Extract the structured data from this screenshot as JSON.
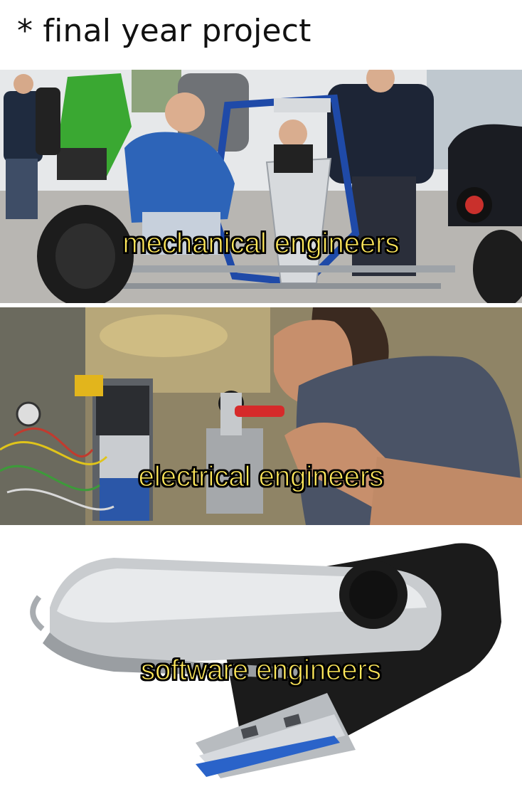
{
  "title": "* final year project",
  "panels": [
    {
      "caption": "mechanical engineers"
    },
    {
      "caption": "electrical engineers"
    },
    {
      "caption": "software engineers"
    }
  ]
}
